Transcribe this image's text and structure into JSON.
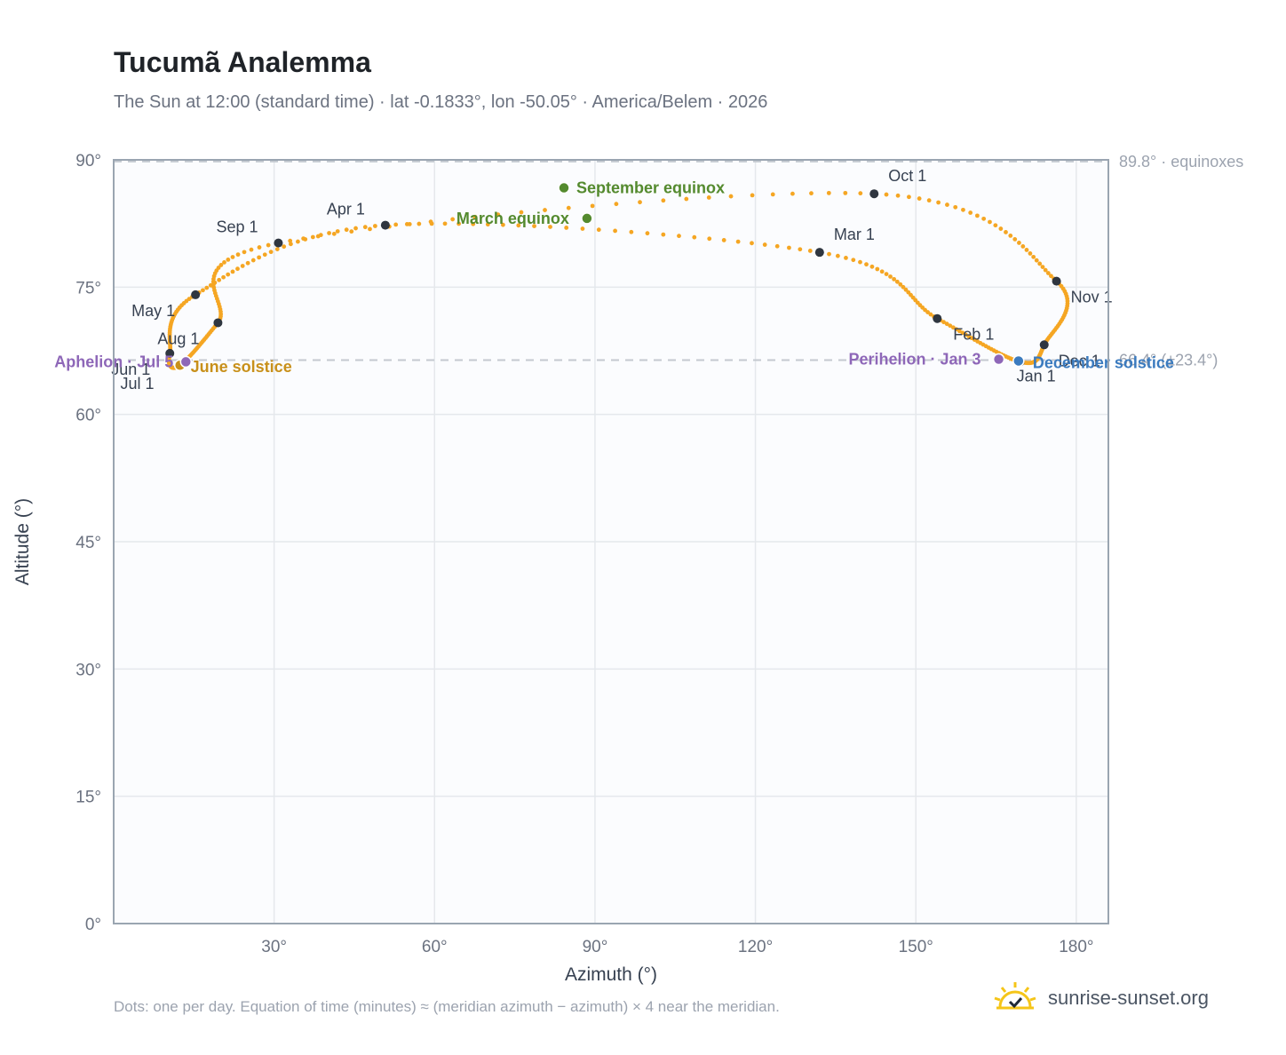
{
  "header": {
    "title": "Tucumã Analemma",
    "subtitle": "The Sun at 12:00 (standard time) · lat -0.1833°, lon -50.05° · America/Belem · 2026"
  },
  "footer": {
    "note": "Dots: one per day. Equation of time (minutes) ≈ (meridian azimuth − azimuth) × 4 near the meridian.",
    "brand": "sunrise-sunset.org",
    "brand_icon": "sunrise-logo-icon"
  },
  "chart_data": {
    "type": "scatter",
    "xlabel": "Azimuth (°)",
    "ylabel": "Altitude (°)",
    "xlim": [
      0,
      186
    ],
    "ylim": [
      0,
      90
    ],
    "x_ticks": [
      30,
      60,
      90,
      120,
      150,
      180
    ],
    "x_tick_labels": [
      "30°",
      "60°",
      "90°",
      "120°",
      "150°",
      "180°"
    ],
    "y_ticks": [
      0,
      15,
      30,
      45,
      60,
      75,
      90
    ],
    "y_tick_labels": [
      "0°",
      "15°",
      "30°",
      "45°",
      "60°",
      "75°",
      "90°"
    ],
    "grid": true,
    "colors": {
      "path": "#f5a623",
      "month_marker": "#2f3640",
      "equinox": "#548a2e",
      "june_solstice": "#c8901a",
      "december_solstice": "#3b7bbf",
      "apsis": "#8e67b8",
      "reference_line": "#c4c9d0"
    },
    "monthly_positions": [
      {
        "label": "Jan 1",
        "az": 169.5,
        "alt": 66.2
      },
      {
        "label": "Feb 1",
        "az": 154.0,
        "alt": 71.3
      },
      {
        "label": "Mar 1",
        "az": 132.0,
        "alt": 79.1
      },
      {
        "label": "Apr 1",
        "az": 50.8,
        "alt": 82.3
      },
      {
        "label": "May 1",
        "az": 15.3,
        "alt": 74.1
      },
      {
        "label": "Jun 1",
        "az": 10.5,
        "alt": 67.2
      },
      {
        "label": "Jul 1",
        "az": 12.2,
        "alt": 65.7
      },
      {
        "label": "Aug 1",
        "az": 19.5,
        "alt": 70.8
      },
      {
        "label": "Sep 1",
        "az": 30.8,
        "alt": 80.2
      },
      {
        "label": "Oct 1",
        "az": 142.2,
        "alt": 86.0
      },
      {
        "label": "Nov 1",
        "az": 176.3,
        "alt": 75.7
      },
      {
        "label": "Dec 1",
        "az": 174.0,
        "alt": 68.2
      }
    ],
    "events": [
      {
        "label": "March equinox",
        "az": 88.5,
        "alt": 83.1,
        "kind": "equinox"
      },
      {
        "label": "September equinox",
        "az": 84.2,
        "alt": 86.7,
        "kind": "equinox"
      },
      {
        "label": "June solstice",
        "az": 12.4,
        "alt": 65.8,
        "kind": "june_solstice"
      },
      {
        "label": "December solstice",
        "az": 169.2,
        "alt": 66.3,
        "kind": "december_solstice"
      },
      {
        "label": "Perihelion · Jan 3",
        "az": 165.5,
        "alt": 66.5,
        "kind": "apsis"
      },
      {
        "label": "Aphelion · Jul 5",
        "az": 13.5,
        "alt": 66.2,
        "kind": "apsis"
      }
    ],
    "reference_lines": [
      {
        "alt": 89.8,
        "label": "89.8° · equinoxes"
      },
      {
        "alt": 66.4,
        "label": "66.4° (±23.4°)"
      }
    ]
  }
}
